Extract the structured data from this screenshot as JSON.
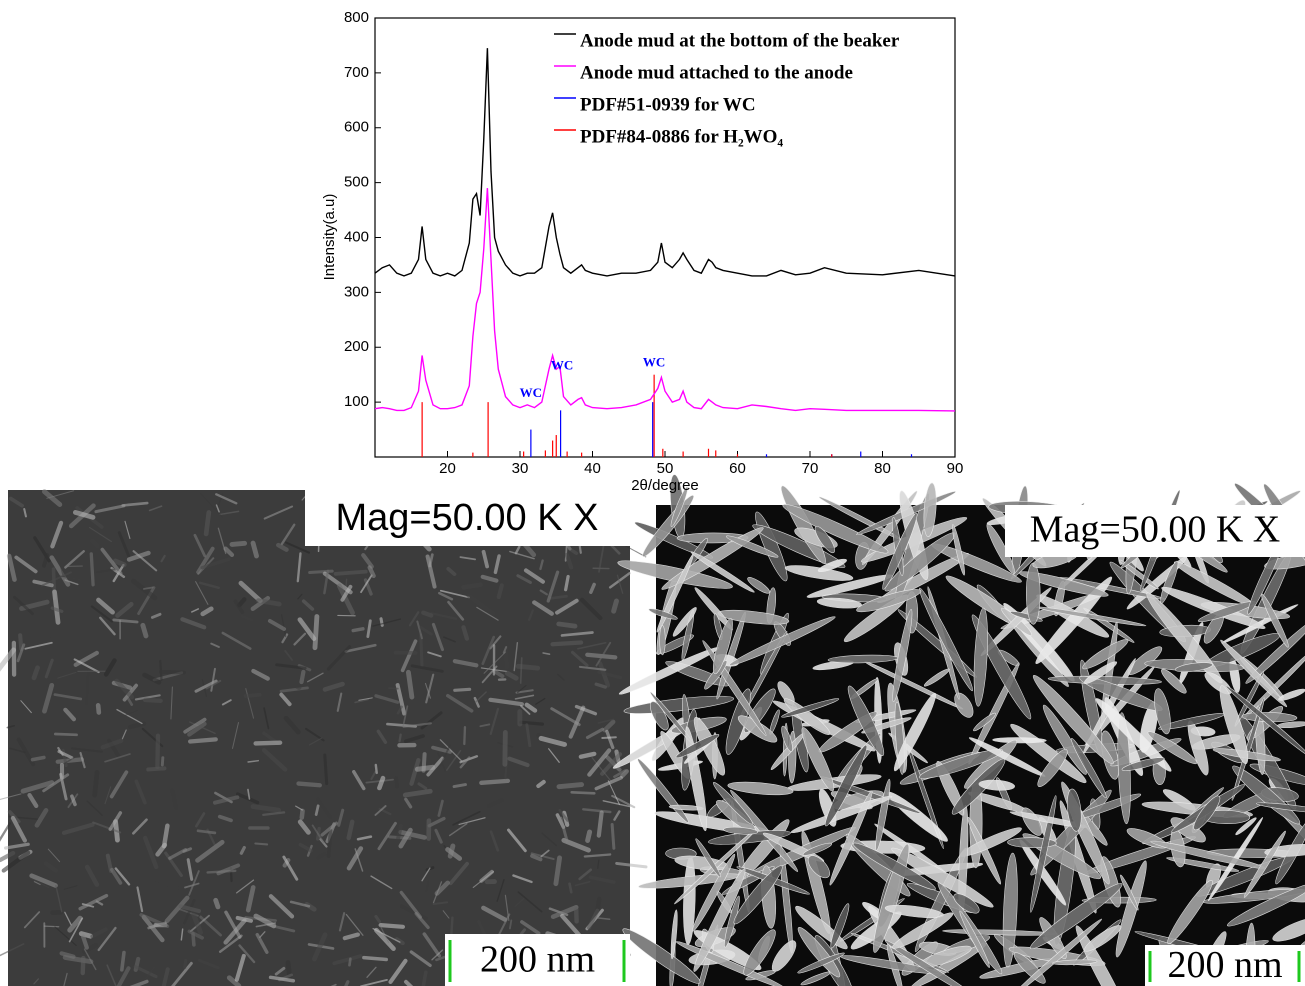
{
  "chart_data": {
    "type": "line",
    "xlabel": "2θ/degree",
    "ylabel": "Intensity(a.u)",
    "xlim": [
      10,
      90
    ],
    "xticks": [
      20,
      30,
      40,
      50,
      60,
      70,
      80,
      90
    ],
    "ylim": [
      0,
      800
    ],
    "yticks": [
      100,
      200,
      300,
      400,
      500,
      600,
      700,
      800
    ],
    "legend": "upper right",
    "x": [
      10,
      11,
      12,
      13,
      14,
      15,
      16,
      16.5,
      17,
      18,
      19,
      20,
      21,
      22,
      23,
      23.5,
      24,
      24.5,
      25,
      25.5,
      26,
      26.5,
      27,
      28,
      29,
      30,
      31,
      32,
      33,
      34,
      34.5,
      35,
      35.5,
      36,
      37,
      38,
      38.5,
      39,
      40,
      42,
      44,
      46,
      48,
      49,
      49.5,
      50,
      51,
      52,
      52.5,
      53,
      54,
      55,
      56,
      56.5,
      57,
      58,
      60,
      62,
      64,
      66,
      68,
      70,
      72,
      75,
      80,
      85,
      90
    ],
    "series": [
      {
        "name": "Anode mud at the bottom of the beaker",
        "color": "#000000",
        "style": "line",
        "values": [
          335,
          345,
          350,
          335,
          330,
          335,
          360,
          420,
          360,
          335,
          330,
          335,
          330,
          340,
          390,
          470,
          480,
          440,
          580,
          745,
          520,
          400,
          375,
          350,
          335,
          330,
          335,
          335,
          345,
          420,
          445,
          400,
          370,
          345,
          335,
          345,
          350,
          340,
          335,
          330,
          335,
          335,
          340,
          355,
          390,
          355,
          345,
          360,
          372,
          360,
          340,
          335,
          360,
          355,
          345,
          340,
          335,
          330,
          330,
          340,
          332,
          335,
          345,
          335,
          332,
          340,
          330
        ]
      },
      {
        "name": "Anode mud attached to the anode",
        "color": "#ff00ff",
        "style": "line",
        "values": [
          88,
          90,
          88,
          85,
          85,
          90,
          120,
          185,
          140,
          95,
          88,
          88,
          90,
          95,
          130,
          220,
          280,
          300,
          380,
          490,
          360,
          230,
          160,
          110,
          95,
          90,
          95,
          90,
          100,
          160,
          185,
          160,
          165,
          110,
          95,
          105,
          108,
          95,
          90,
          88,
          90,
          95,
          105,
          125,
          145,
          120,
          100,
          105,
          120,
          100,
          90,
          88,
          105,
          100,
          95,
          90,
          88,
          95,
          92,
          88,
          85,
          88,
          87,
          85,
          85,
          85,
          84
        ]
      },
      {
        "name": "PDF#51-0939 for WC",
        "color": "#0000ff",
        "style": "sticks",
        "x": [
          31.5,
          35.6,
          48.3,
          64,
          73,
          77,
          84
        ],
        "values": [
          50,
          85,
          100,
          5,
          5,
          10,
          5
        ]
      },
      {
        "name": "PDF#84-0886 for H₂WO₄",
        "color": "#ff0000",
        "style": "sticks",
        "x": [
          16.5,
          23.5,
          25.6,
          30.5,
          33.5,
          34.5,
          35,
          36.5,
          38.5,
          48.5,
          49.7,
          52.5,
          56,
          57,
          60,
          73
        ],
        "values": [
          100,
          8,
          100,
          10,
          12,
          30,
          40,
          10,
          8,
          150,
          15,
          10,
          15,
          12,
          5,
          5
        ]
      }
    ],
    "annotations": [
      {
        "text": "WC",
        "x": 31.5,
        "y": 115
      },
      {
        "text": "WC",
        "x": 35.8,
        "y": 165
      },
      {
        "text": "WC",
        "x": 48.5,
        "y": 170
      }
    ]
  },
  "panels": [
    {
      "caption": "Mag=50.00 K X",
      "scale_bar": "200 nm"
    },
    {
      "caption": "Mag=50.00 K X",
      "scale_bar": "200 nm"
    }
  ]
}
